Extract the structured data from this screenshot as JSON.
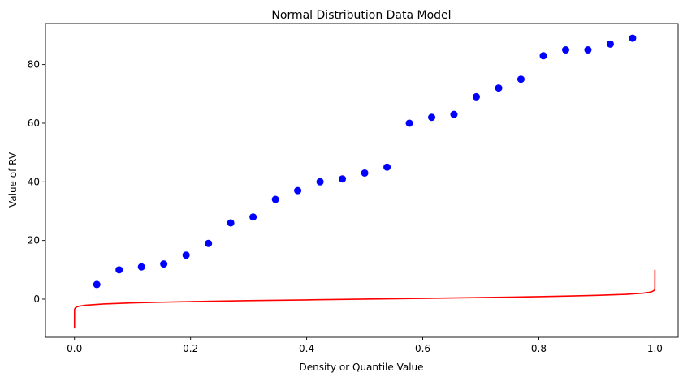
{
  "chart_data": {
    "type": "scatter",
    "title": "Normal Distribution Data Model",
    "xlabel": "Density or Quantile Value",
    "ylabel": "Value of RV",
    "xlim": [
      -0.05,
      1.04
    ],
    "ylim": [
      -13,
      94
    ],
    "xticks": [
      0.0,
      0.2,
      0.4,
      0.6,
      0.8,
      1.0
    ],
    "xtick_labels": [
      "0.0",
      "0.2",
      "0.4",
      "0.6",
      "0.8",
      "1.0"
    ],
    "yticks": [
      0,
      20,
      40,
      60,
      80
    ],
    "ytick_labels": [
      "0",
      "20",
      "40",
      "60",
      "80"
    ],
    "grid": false,
    "series": [
      {
        "kind": "scatter",
        "color": "#0000ff",
        "x": [
          0.0385,
          0.0769,
          0.1154,
          0.1538,
          0.1923,
          0.2308,
          0.2692,
          0.3077,
          0.3462,
          0.3846,
          0.4231,
          0.4615,
          0.5,
          0.5385,
          0.5769,
          0.6154,
          0.6538,
          0.6923,
          0.7308,
          0.7692,
          0.8077,
          0.8462,
          0.8846,
          0.9231,
          0.9615
        ],
        "y": [
          5,
          10,
          11,
          12,
          15,
          19,
          26,
          28,
          34,
          37,
          40,
          41,
          43,
          45,
          60,
          62,
          63,
          69,
          72,
          75,
          83,
          85,
          85,
          87,
          89
        ]
      },
      {
        "kind": "line",
        "color": "#ff0000",
        "x": [
          0.0,
          0.0001,
          0.0005,
          0.001,
          0.002,
          0.005,
          0.01,
          0.02,
          0.05,
          0.1,
          0.15,
          0.2,
          0.3,
          0.4,
          0.5,
          0.6,
          0.7,
          0.8,
          0.85,
          0.9,
          0.95,
          0.98,
          0.99,
          0.995,
          0.998,
          0.999,
          0.9995,
          0.9999,
          1.0
        ],
        "y": [
          -10,
          -3.7,
          -3.3,
          -3.1,
          -2.9,
          -2.58,
          -2.33,
          -2.05,
          -1.64,
          -1.28,
          -1.04,
          -0.84,
          -0.52,
          -0.25,
          0,
          0.25,
          0.52,
          0.84,
          1.04,
          1.28,
          1.64,
          2.05,
          2.33,
          2.58,
          2.9,
          3.1,
          3.3,
          3.7,
          10
        ]
      }
    ]
  }
}
